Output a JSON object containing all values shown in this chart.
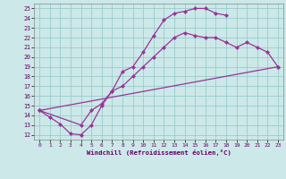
{
  "xlabel": "Windchill (Refroidissement éolien,°C)",
  "xlim": [
    -0.5,
    23.5
  ],
  "ylim": [
    11.5,
    25.5
  ],
  "xticks": [
    0,
    1,
    2,
    3,
    4,
    5,
    6,
    7,
    8,
    9,
    10,
    11,
    12,
    13,
    14,
    15,
    16,
    17,
    18,
    19,
    20,
    21,
    22,
    23
  ],
  "yticks": [
    12,
    13,
    14,
    15,
    16,
    17,
    18,
    19,
    20,
    21,
    22,
    23,
    24,
    25
  ],
  "bg_color": "#cce8e8",
  "line_color": "#993399",
  "grid_color": "#99cccc",
  "curve1_x": [
    0,
    1,
    2,
    3,
    4,
    5,
    6,
    7,
    8,
    9,
    10,
    11,
    12,
    13,
    14,
    15,
    16,
    17,
    18
  ],
  "curve1_y": [
    14.5,
    13.8,
    13.1,
    12.1,
    12.0,
    13.0,
    15.0,
    16.5,
    18.5,
    19.0,
    20.5,
    22.2,
    23.8,
    24.5,
    24.7,
    25.0,
    25.0,
    24.5,
    24.3
  ],
  "curve2_x": [
    0,
    4,
    5,
    6,
    7,
    8,
    9,
    10,
    11,
    12,
    13,
    14,
    15,
    16,
    17,
    18,
    19,
    20,
    21,
    22,
    23
  ],
  "curve2_y": [
    14.5,
    13.0,
    14.5,
    15.2,
    16.5,
    17.0,
    18.0,
    19.0,
    20.0,
    21.0,
    22.0,
    22.5,
    22.2,
    22.0,
    22.0,
    21.5,
    21.0,
    21.5,
    21.0,
    20.5,
    19.0
  ],
  "curve3_x": [
    0,
    23
  ],
  "curve3_y": [
    14.5,
    19.0
  ]
}
